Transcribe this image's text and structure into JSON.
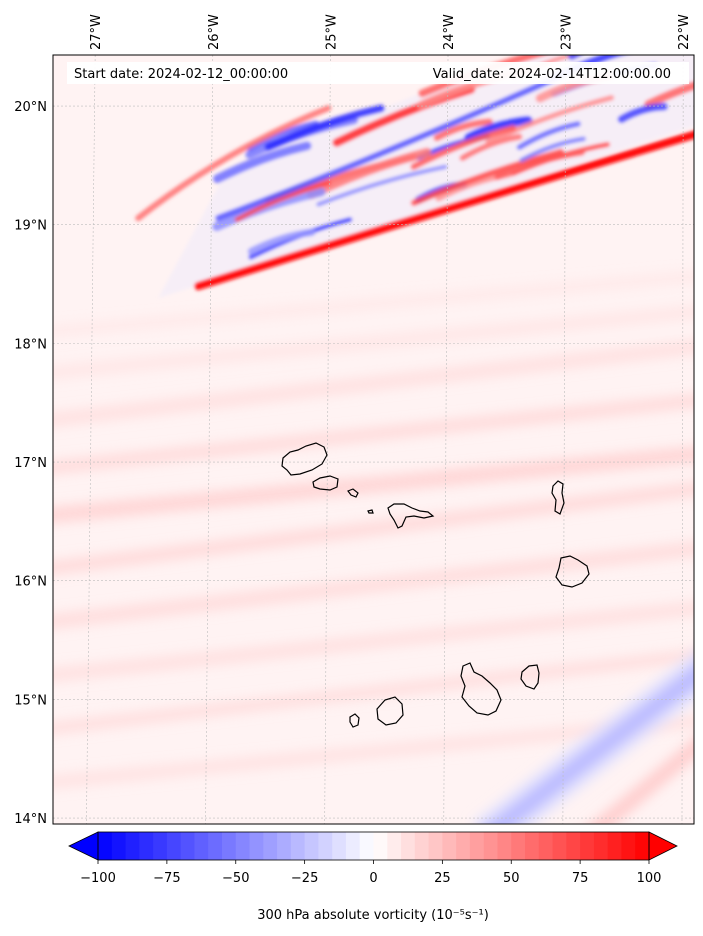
{
  "chart_data": {
    "type": "heatmap",
    "title": "",
    "start_date_label": "Start date: 2024-02-12_00:00:00",
    "valid_date_label": "Valid_date: 2024-02-14T12:00:00.00",
    "lon_ticks": [
      {
        "value": -27,
        "label": "27°W"
      },
      {
        "value": -26,
        "label": "26°W"
      },
      {
        "value": -25,
        "label": "25°W"
      },
      {
        "value": -24,
        "label": "24°W"
      },
      {
        "value": -23,
        "label": "23°W"
      },
      {
        "value": -22,
        "label": "22°W"
      }
    ],
    "lat_ticks": [
      {
        "value": 20,
        "label": "20°N"
      },
      {
        "value": 19,
        "label": "19°N"
      },
      {
        "value": 18,
        "label": "18°N"
      },
      {
        "value": 17,
        "label": "17°N"
      },
      {
        "value": 16,
        "label": "16°N"
      },
      {
        "value": 15,
        "label": "15°N"
      },
      {
        "value": 14,
        "label": "14°N"
      }
    ],
    "xlim": [
      -27.35,
      -21.9
    ],
    "ylim": [
      13.95,
      20.43
    ],
    "colorbar": {
      "label": "300 hPa absolute vorticity (10⁻⁵s⁻¹)",
      "range": [
        -100,
        100
      ],
      "ticks": [
        {
          "value": -100,
          "label": "−100"
        },
        {
          "value": -75,
          "label": "−75"
        },
        {
          "value": -50,
          "label": "−50"
        },
        {
          "value": -25,
          "label": "−25"
        },
        {
          "value": 0,
          "label": "0"
        },
        {
          "value": 25,
          "label": "25"
        },
        {
          "value": 50,
          "label": "50"
        },
        {
          "value": 75,
          "label": "75"
        },
        {
          "value": 100,
          "label": "100"
        }
      ],
      "extend": "both",
      "cmap": "bwr",
      "colors": {
        "low": "#0000ff",
        "mid": "#ffffff",
        "high": "#ff0000"
      }
    },
    "background_value": 8,
    "features": [
      {
        "name": "vorticity-band-north",
        "lon_start": -26.2,
        "lat_start": 18.55,
        "lon_end": -21.9,
        "lat_end": 19.8,
        "amplitude": 90
      },
      {
        "name": "vorticity-band-southeast",
        "lon_start": -23.6,
        "lat_start": 14.0,
        "lon_end": -21.9,
        "lat_end": 15.3,
        "amplitude": -30
      }
    ],
    "islands": [
      {
        "name": "Santo Antao",
        "lon": -25.15,
        "lat": 17.05
      },
      {
        "name": "Sao Vicente",
        "lon": -24.95,
        "lat": 16.83
      },
      {
        "name": "Santa Luzia",
        "lon": -24.75,
        "lat": 16.75
      },
      {
        "name": "Sao Nicolau",
        "lon": -24.25,
        "lat": 16.6
      },
      {
        "name": "Sal",
        "lon": -22.93,
        "lat": 16.72
      },
      {
        "name": "Boa Vista",
        "lon": -22.85,
        "lat": 16.1
      },
      {
        "name": "Maio",
        "lon": -23.15,
        "lat": 15.22
      },
      {
        "name": "Santiago",
        "lon": -23.6,
        "lat": 15.05
      },
      {
        "name": "Fogo",
        "lon": -24.4,
        "lat": 14.92
      },
      {
        "name": "Brava",
        "lon": -24.7,
        "lat": 14.85
      }
    ]
  }
}
